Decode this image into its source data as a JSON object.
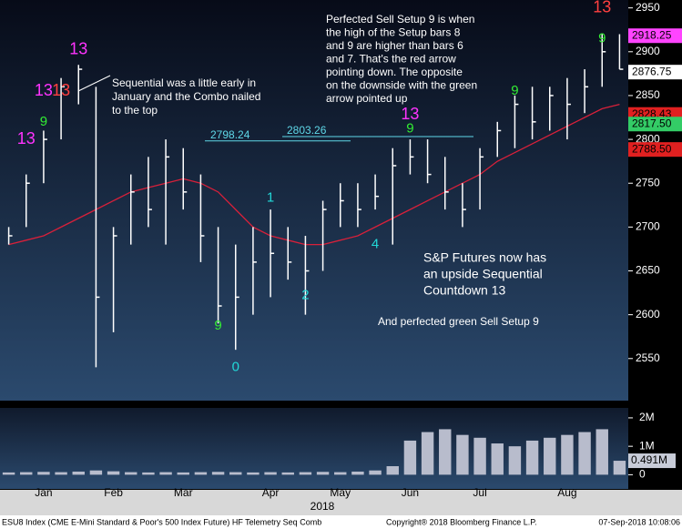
{
  "chart_data": [
    {
      "type": "ohlc",
      "high": [
        2700,
        2760,
        2810,
        2870,
        2885,
        2860,
        2700,
        2760,
        2780,
        2800,
        2790,
        2760,
        2700,
        2680,
        2700,
        2720,
        2700,
        2690,
        2730,
        2750,
        2750,
        2760,
        2790,
        2800,
        2800,
        2780,
        2750,
        2790,
        2820,
        2850,
        2860,
        2860,
        2870,
        2880,
        2920,
        2920
      ],
      "low": [
        2680,
        2700,
        2750,
        2800,
        2840,
        2540,
        2580,
        2680,
        2700,
        2680,
        2720,
        2660,
        2590,
        2560,
        2600,
        2620,
        2640,
        2600,
        2650,
        2700,
        2700,
        2720,
        2680,
        2760,
        2750,
        2720,
        2700,
        2720,
        2780,
        2790,
        2800,
        2810,
        2800,
        2830,
        2860,
        2880
      ],
      "close": [
        2690,
        2750,
        2800,
        2860,
        2880,
        2620,
        2690,
        2740,
        2720,
        2780,
        2740,
        2690,
        2610,
        2620,
        2660,
        2670,
        2660,
        2650,
        2720,
        2730,
        2720,
        2735,
        2770,
        2780,
        2760,
        2740,
        2720,
        2780,
        2810,
        2840,
        2820,
        2850,
        2840,
        2860,
        2900,
        2880
      ],
      "color": "#ffffff",
      "ma": {
        "color": "#d8203a",
        "values": [
          2680,
          2685,
          2690,
          2700,
          2710,
          2720,
          2730,
          2740,
          2745,
          2750,
          2755,
          2750,
          2740,
          2720,
          2700,
          2690,
          2685,
          2680,
          2680,
          2685,
          2690,
          2700,
          2710,
          2720,
          2730,
          2740,
          2750,
          2760,
          2775,
          2785,
          2795,
          2805,
          2815,
          2825,
          2835,
          2840
        ]
      },
      "ylim": [
        2502,
        2959
      ],
      "yticks": [
        2550,
        2600,
        2650,
        2700,
        2750,
        2800,
        2850,
        2900,
        2950
      ],
      "price_labels": [
        {
          "value": 2918.25,
          "color": "#ff44ff"
        },
        {
          "value": 2876.75,
          "color": "#ffffff"
        },
        {
          "value": 2828.43,
          "color": "#e02020"
        },
        {
          "value": 2817.5,
          "label": "2817.50",
          "color": "#33cc66"
        },
        {
          "value": 2788.5,
          "label": "2788.50",
          "color": "#e02020"
        }
      ],
      "levels": [
        2798.24,
        2803.26
      ],
      "counts": [
        {
          "label": "13",
          "bar": 4,
          "value": 2902,
          "color": "#ff33ff"
        },
        {
          "label": "13",
          "bar": 2,
          "value": 2855,
          "color": "#ff33ff"
        },
        {
          "label": "13",
          "bar": 3,
          "value": 2855,
          "color": "#ff4040"
        },
        {
          "label": "13",
          "bar": 1,
          "value": 2800,
          "color": "#ff33ff"
        },
        {
          "label": "13",
          "bar": 23,
          "value": 2828,
          "color": "#ff33ff"
        },
        {
          "label": "13",
          "bar": 34,
          "value": 2950,
          "color": "#ff4040"
        },
        {
          "label": "9",
          "bar": 2,
          "value": 2820,
          "color": "#33ee33"
        },
        {
          "label": "9",
          "bar": 12,
          "value": 2587,
          "color": "#33ee33"
        },
        {
          "label": "9",
          "bar": 23,
          "value": 2812,
          "color": "#33ee33"
        },
        {
          "label": "9",
          "bar": 29,
          "value": 2855,
          "color": "#33ee33"
        },
        {
          "label": "9",
          "bar": 34,
          "value": 2915,
          "color": "#33ee33"
        },
        {
          "label": "0",
          "bar": 13,
          "value": 2540,
          "color": "#22d8d8"
        },
        {
          "label": "1",
          "bar": 15,
          "value": 2733,
          "color": "#22d8d8"
        },
        {
          "label": "2",
          "bar": 17,
          "value": 2622,
          "color": "#22d8d8"
        },
        {
          "label": "4",
          "bar": 21,
          "value": 2680,
          "color": "#22d8d8"
        }
      ],
      "annotations": [
        [
          "Perfected Sell Setup 9 is when",
          "the high of the Setup bars 8",
          "and 9 are higher than bars 6",
          "and 7.  That's the red arrow",
          "pointing down.  The opposite",
          "on the downside with the green",
          "arrow pointed up"
        ],
        [
          "Sequential was a little early in",
          "January and the Combo nailed",
          "to the top"
        ],
        [
          "S&P Futures now has",
          "an upside Sequential",
          "Countdown 13"
        ],
        [
          "And perfected green Sell Setup 9"
        ]
      ]
    },
    {
      "type": "bar",
      "categories": [
        null,
        null,
        "Jan",
        null,
        null,
        null,
        "Feb",
        null,
        null,
        null,
        "Mar",
        null,
        null,
        null,
        null,
        "Apr",
        null,
        null,
        null,
        "May",
        null,
        null,
        null,
        "Jun",
        null,
        null,
        null,
        "Jul",
        null,
        null,
        null,
        null,
        "Aug",
        null,
        null,
        null
      ],
      "values": [
        80000,
        90000,
        100000,
        90000,
        110000,
        150000,
        120000,
        90000,
        80000,
        90000,
        80000,
        90000,
        100000,
        90000,
        80000,
        90000,
        80000,
        90000,
        100000,
        90000,
        110000,
        150000,
        300000,
        1200000,
        1500000,
        1600000,
        1400000,
        1300000,
        1100000,
        1000000,
        1200000,
        1300000,
        1400000,
        1500000,
        1600000,
        491000
      ],
      "color": "#b8bccc",
      "ylim": [
        -500000,
        2350000
      ],
      "yticks": [
        0,
        {
          "value": 1000000,
          "label": "1M"
        },
        {
          "value": 2000000,
          "label": "2M"
        }
      ],
      "last_label": {
        "value": 491000,
        "label": "0.491M"
      },
      "x_label": "2018"
    }
  ],
  "footer": {
    "left": "ESU8 Index (CME E-Mini Standard & Poor's 500 Index Future) HF Telemetry Seq Comb",
    "center": "Copyright® 2018 Bloomberg Finance L.P.",
    "right": "07-Sep-2018 10:08:06"
  }
}
